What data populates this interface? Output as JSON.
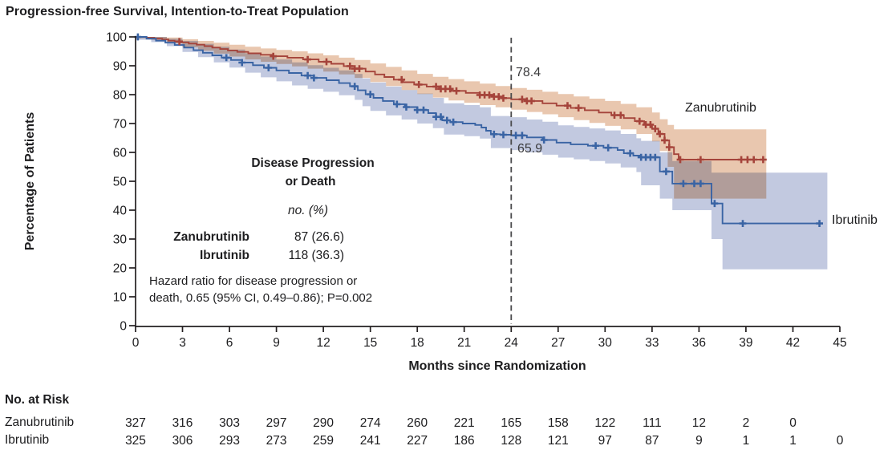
{
  "title": "Progression-free Survival, Intention-to-Treat Population",
  "axes": {
    "y_label": "Percentage of Patients",
    "x_label": "Months since Randomization"
  },
  "annotations": {
    "zanubrutinib_24mo": "78.4",
    "ibrutinib_24mo": "65.9"
  },
  "curve_labels": {
    "zanubrutinib": "Zanubrutinib",
    "ibrutinib": "Ibrutinib"
  },
  "inset": {
    "heading_line1": "Disease Progression",
    "heading_line2": "or Death",
    "unit": "no. (%)",
    "rows": [
      {
        "name": "Zanubrutinib",
        "value": "87 (26.6)"
      },
      {
        "name": "Ibrutinib",
        "value": "118 (36.3)"
      }
    ],
    "hazard_line1": "Hazard ratio for disease progression or",
    "hazard_line2": "death, 0.65 (95% CI, 0.49–0.86); P=0.002"
  },
  "risk_table": {
    "heading": "No. at Risk",
    "rows": [
      {
        "name": "Zanubrutinib",
        "values": [
          327,
          316,
          303,
          297,
          290,
          274,
          260,
          221,
          165,
          158,
          122,
          111,
          12,
          2,
          0
        ]
      },
      {
        "name": "Ibrutinib",
        "values": [
          325,
          306,
          293,
          273,
          259,
          241,
          227,
          186,
          128,
          121,
          97,
          87,
          9,
          1,
          1,
          0
        ]
      }
    ]
  },
  "colors": {
    "zanubrutinib_line": "#A5443B",
    "zanubrutinib_band": "#E9C7AF",
    "ibrutinib_line": "#3A64A4",
    "ibrutinib_band": "#C2C9E0",
    "axis": "#231f20",
    "dashed_line": "#4a4a4c"
  },
  "chart_data": {
    "type": "line",
    "subtype": "kaplan-meier-step-curves-with-confidence-bands",
    "title": "Progression-free Survival, Intention-to-Treat Population",
    "xlabel": "Months since Randomization",
    "ylabel": "Percentage of Patients",
    "xlim": [
      0,
      45
    ],
    "ylim": [
      0,
      100
    ],
    "x_ticks": [
      0,
      3,
      6,
      9,
      12,
      15,
      18,
      21,
      24,
      27,
      30,
      33,
      36,
      39,
      42,
      45
    ],
    "y_ticks": [
      0,
      10,
      20,
      30,
      40,
      50,
      60,
      70,
      80,
      90,
      100
    ],
    "grid": false,
    "reference_line_x": 24,
    "series": [
      {
        "name": "Zanubrutinib",
        "pfs_at_reference": 78.4,
        "events": "87 (26.6)",
        "points": [
          [
            0,
            100
          ],
          [
            0.7,
            99.7
          ],
          [
            1.2,
            99.4
          ],
          [
            1.7,
            99.1
          ],
          [
            2.1,
            98.7
          ],
          [
            2.5,
            98.4
          ],
          [
            2.9,
            98.1
          ],
          [
            3.4,
            97.7
          ],
          [
            3.9,
            97.3
          ],
          [
            4.4,
            96.8
          ],
          [
            4.9,
            96.3
          ],
          [
            5.4,
            95.8
          ],
          [
            5.9,
            95.3
          ],
          [
            6.5,
            94.8
          ],
          [
            7.2,
            94.3
          ],
          [
            8,
            93.8
          ],
          [
            8.8,
            93.3
          ],
          [
            9.7,
            92.8
          ],
          [
            10.7,
            92.2
          ],
          [
            11.7,
            91.4
          ],
          [
            12.5,
            90.7
          ],
          [
            13.3,
            89.9
          ],
          [
            14,
            89
          ],
          [
            14.7,
            88
          ],
          [
            15.3,
            87
          ],
          [
            15.9,
            86.1
          ],
          [
            16.5,
            85.2
          ],
          [
            17.1,
            84.3
          ],
          [
            17.8,
            83.5
          ],
          [
            18.6,
            82.8
          ],
          [
            19.4,
            82
          ],
          [
            20.2,
            81.3
          ],
          [
            21.1,
            80.6
          ],
          [
            22,
            79.9
          ],
          [
            22.8,
            79.3
          ],
          [
            23.5,
            78.8
          ],
          [
            24,
            78.4
          ],
          [
            25,
            77.8
          ],
          [
            26,
            77
          ],
          [
            26.9,
            76.2
          ],
          [
            27.8,
            75.4
          ],
          [
            28.7,
            74.6
          ],
          [
            29.6,
            73.8
          ],
          [
            30.4,
            72.9
          ],
          [
            31.2,
            71.9
          ],
          [
            31.9,
            70.8
          ],
          [
            32.5,
            69.6
          ],
          [
            33,
            68.2
          ],
          [
            33.4,
            66.4
          ],
          [
            33.8,
            64.2
          ],
          [
            34.1,
            61.8
          ],
          [
            34.4,
            59.4
          ],
          [
            34.7,
            57.5
          ],
          [
            40.2,
            57.5
          ]
        ],
        "censor_months": [
          2.8,
          8.8,
          11,
          12.2,
          13.7,
          14,
          14.3,
          17,
          18.1,
          19.2,
          19.5,
          19.8,
          20.1,
          20.5,
          22,
          22.3,
          22.6,
          22.9,
          23.2,
          23.5,
          24.7,
          25,
          25.3,
          27.6,
          28.3,
          30.6,
          31,
          32.2,
          32.6,
          32.9,
          33.2,
          33.5,
          33.8,
          34.1,
          34.8,
          36.1,
          38.7,
          39.1,
          39.5,
          40.1
        ],
        "band_upper": [
          [
            0,
            100
          ],
          [
            2,
            99.8
          ],
          [
            3,
            99.2
          ],
          [
            4,
            98.6
          ],
          [
            5,
            98
          ],
          [
            6,
            97.3
          ],
          [
            7,
            96.6
          ],
          [
            8,
            96
          ],
          [
            9,
            95.5
          ],
          [
            10,
            95
          ],
          [
            11,
            94.3
          ],
          [
            12,
            93.6
          ],
          [
            13,
            92.8
          ],
          [
            14,
            92
          ],
          [
            15,
            90.8
          ],
          [
            16,
            89.6
          ],
          [
            17,
            88.4
          ],
          [
            18,
            87.2
          ],
          [
            19,
            86.2
          ],
          [
            20,
            85.4
          ],
          [
            21,
            84.6
          ],
          [
            22,
            83.8
          ],
          [
            23,
            83
          ],
          [
            24,
            82.3
          ],
          [
            25,
            81.7
          ],
          [
            26,
            81
          ],
          [
            27,
            80.2
          ],
          [
            28,
            79.4
          ],
          [
            29,
            78.6
          ],
          [
            30,
            77.8
          ],
          [
            31,
            76.8
          ],
          [
            32,
            75.6
          ],
          [
            33,
            73.8
          ],
          [
            33.5,
            71.5
          ],
          [
            34,
            69.5
          ],
          [
            34.4,
            68
          ]
        ],
        "band_lower": [
          [
            0,
            99.5
          ],
          [
            1,
            99
          ],
          [
            2,
            97.8
          ],
          [
            3,
            96.4
          ],
          [
            4,
            95.2
          ],
          [
            5,
            94.2
          ],
          [
            6,
            93.2
          ],
          [
            7,
            92.2
          ],
          [
            8,
            91.4
          ],
          [
            9,
            90.6
          ],
          [
            10,
            89.8
          ],
          [
            11,
            89
          ],
          [
            12,
            88
          ],
          [
            13,
            87
          ],
          [
            14,
            85.8
          ],
          [
            15,
            84.4
          ],
          [
            16,
            83
          ],
          [
            17,
            81.6
          ],
          [
            18,
            80.2
          ],
          [
            19,
            79
          ],
          [
            20,
            78
          ],
          [
            21,
            77.2
          ],
          [
            22,
            76.4
          ],
          [
            23,
            75.6
          ],
          [
            24,
            74.8
          ],
          [
            25,
            74
          ],
          [
            26,
            73.2
          ],
          [
            27,
            72.2
          ],
          [
            28,
            71.2
          ],
          [
            29,
            70.2
          ],
          [
            30,
            69.2
          ],
          [
            31,
            68
          ],
          [
            32,
            66.4
          ],
          [
            33,
            63.8
          ],
          [
            33.5,
            60.5
          ],
          [
            34,
            55
          ],
          [
            34.4,
            44
          ]
        ],
        "band_end_month": 40.3
      },
      {
        "name": "Ibrutinib",
        "pfs_at_reference": 65.9,
        "events": "118 (36.3)",
        "points": [
          [
            0,
            100
          ],
          [
            0.7,
            99.4
          ],
          [
            1.3,
            98.7
          ],
          [
            1.9,
            98
          ],
          [
            2.5,
            97.2
          ],
          [
            3.1,
            96.3
          ],
          [
            3.7,
            95.4
          ],
          [
            4.3,
            94.5
          ],
          [
            4.9,
            93.6
          ],
          [
            5.5,
            92.8
          ],
          [
            6.1,
            92
          ],
          [
            6.8,
            91.1
          ],
          [
            7.5,
            90.2
          ],
          [
            8.2,
            89.3
          ],
          [
            9,
            88.4
          ],
          [
            9.8,
            87.5
          ],
          [
            10.6,
            86.6
          ],
          [
            11.4,
            85.8
          ],
          [
            12.2,
            85
          ],
          [
            13,
            84
          ],
          [
            13.7,
            82.9
          ],
          [
            14.2,
            81.5
          ],
          [
            14.7,
            80.1
          ],
          [
            15.2,
            78.9
          ],
          [
            15.8,
            77.8
          ],
          [
            16.5,
            76.7
          ],
          [
            17.2,
            75.7
          ],
          [
            18,
            74.7
          ],
          [
            18.7,
            73.6
          ],
          [
            19.2,
            72.3
          ],
          [
            19.6,
            71.1
          ],
          [
            20.1,
            70.5
          ],
          [
            20.9,
            70
          ],
          [
            21.7,
            69.5
          ],
          [
            22.1,
            68.6
          ],
          [
            22.4,
            67.5
          ],
          [
            22.7,
            66.3
          ],
          [
            23.3,
            66.1
          ],
          [
            24,
            65.9
          ],
          [
            25,
            65.2
          ],
          [
            26,
            64.3
          ],
          [
            26.9,
            63.4
          ],
          [
            27.8,
            62.8
          ],
          [
            28.9,
            62.3
          ],
          [
            29.9,
            61.6
          ],
          [
            30.8,
            60.8
          ],
          [
            31.2,
            59.7
          ],
          [
            31.8,
            58.9
          ],
          [
            32.3,
            58.3
          ],
          [
            33.5,
            53.4
          ],
          [
            34.3,
            49.2
          ],
          [
            36.8,
            42.3
          ],
          [
            37.5,
            35.4
          ],
          [
            43.8,
            35.4
          ]
        ],
        "censor_months": [
          0.15,
          5.8,
          6.8,
          8.5,
          11,
          11.4,
          14,
          15,
          16.7,
          17.3,
          18,
          18.4,
          19.2,
          19.5,
          19.9,
          20.3,
          22.9,
          23.5,
          24.3,
          24.7,
          26.1,
          29.4,
          30.2,
          31.6,
          32.3,
          32.6,
          32.9,
          33.2,
          33.9,
          35,
          35.7,
          36.1,
          37,
          38.8,
          43.7
        ],
        "band_upper": [
          [
            0,
            100
          ],
          [
            2,
            99.4
          ],
          [
            3,
            98.6
          ],
          [
            4,
            97.6
          ],
          [
            5,
            96.6
          ],
          [
            6,
            95.6
          ],
          [
            7,
            94.4
          ],
          [
            8,
            93.2
          ],
          [
            9,
            92.2
          ],
          [
            10,
            91.2
          ],
          [
            11,
            90.2
          ],
          [
            12,
            89.3
          ],
          [
            13,
            88.4
          ],
          [
            14,
            87.2
          ],
          [
            14.5,
            85.6
          ],
          [
            15,
            84.2
          ],
          [
            16,
            82.8
          ],
          [
            17,
            81.6
          ],
          [
            18,
            80.4
          ],
          [
            19,
            78.9
          ],
          [
            19.7,
            77
          ],
          [
            21,
            76.4
          ],
          [
            22,
            75.6
          ],
          [
            22.7,
            72.6
          ],
          [
            24,
            72.2
          ],
          [
            25,
            71.4
          ],
          [
            26,
            70.6
          ],
          [
            27,
            69.4
          ],
          [
            28,
            68.8
          ],
          [
            29,
            68.3
          ],
          [
            30,
            67.6
          ],
          [
            31,
            66.4
          ],
          [
            32,
            64.9
          ],
          [
            32.3,
            64
          ],
          [
            33.5,
            60
          ],
          [
            34.3,
            57
          ],
          [
            36.8,
            53
          ],
          [
            37.5,
            53
          ]
        ],
        "band_lower": [
          [
            0,
            99
          ],
          [
            1,
            98.2
          ],
          [
            2,
            96.8
          ],
          [
            3,
            94.8
          ],
          [
            4,
            93
          ],
          [
            5,
            91.2
          ],
          [
            6,
            89.4
          ],
          [
            7,
            87.6
          ],
          [
            8,
            86
          ],
          [
            9,
            84.6
          ],
          [
            10,
            83.2
          ],
          [
            11,
            82
          ],
          [
            12,
            81
          ],
          [
            13,
            79.8
          ],
          [
            14,
            78.2
          ],
          [
            14.5,
            76
          ],
          [
            15,
            74.4
          ],
          [
            16,
            72.8
          ],
          [
            17,
            71.4
          ],
          [
            18,
            70
          ],
          [
            19,
            68.4
          ],
          [
            19.7,
            66.2
          ],
          [
            21,
            65.6
          ],
          [
            22,
            64.8
          ],
          [
            22.7,
            61.5
          ],
          [
            24,
            60.8
          ],
          [
            25,
            60
          ],
          [
            26,
            59.2
          ],
          [
            27,
            58.2
          ],
          [
            28,
            57.6
          ],
          [
            29,
            57
          ],
          [
            30,
            56.2
          ],
          [
            31,
            54.8
          ],
          [
            32,
            53.2
          ],
          [
            32.3,
            48.6
          ],
          [
            33.5,
            44
          ],
          [
            34.3,
            40
          ],
          [
            36.8,
            30
          ],
          [
            37.5,
            19.5
          ]
        ],
        "band_end_month": 44.2
      }
    ],
    "no_at_risk": {
      "months": [
        0,
        3,
        6,
        9,
        12,
        15,
        18,
        21,
        24,
        27,
        30,
        33,
        36,
        39,
        42,
        45
      ],
      "Zanubrutinib": [
        327,
        316,
        303,
        297,
        290,
        274,
        260,
        221,
        165,
        158,
        122,
        111,
        12,
        2,
        0
      ],
      "Ibrutinib": [
        325,
        306,
        293,
        273,
        259,
        241,
        227,
        186,
        128,
        121,
        97,
        87,
        9,
        1,
        1,
        0
      ]
    }
  }
}
